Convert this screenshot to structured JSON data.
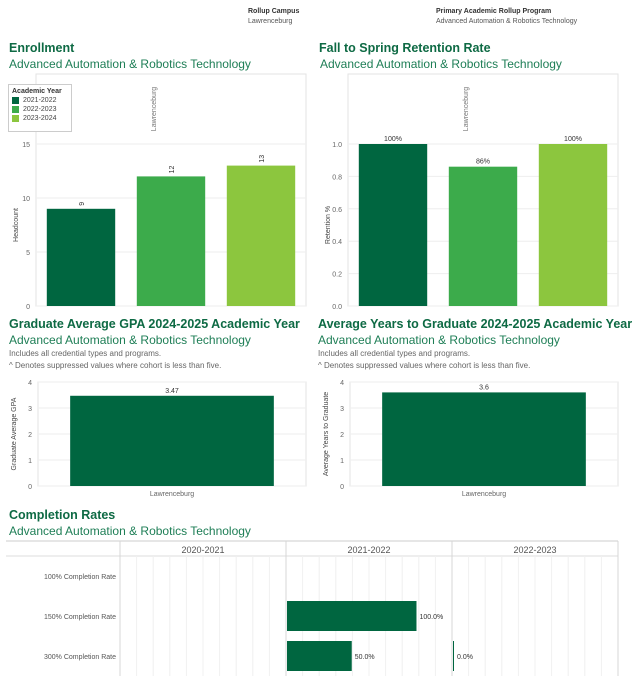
{
  "filters": {
    "campus": {
      "label": "Rollup Campus",
      "value": "Lawrenceburg"
    },
    "program": {
      "label": "Primary Academic Rollup Program",
      "value": "Advanced Automation & Robotics Technology"
    }
  },
  "colors": {
    "dark_green": "#006640",
    "mid_green": "#3cab4b",
    "light_green": "#8cc63e",
    "title_green": "#0e6a44"
  },
  "enrollment": {
    "title": "Enrollment",
    "subtitle": "Advanced Automation & Robotics Technology",
    "legend_title": "Academic Year",
    "column_header": "Lawrenceburg"
  },
  "retention": {
    "title": "Fall to Spring Retention Rate",
    "subtitle": "Advanced Automation & Robotics Technology",
    "column_header": "Lawrenceburg"
  },
  "gpa": {
    "title": "Graduate Average GPA 2024-2025 Academic Year",
    "subtitle": "Advanced Automation & Robotics Technology",
    "note1": "Includes all credential types and programs.",
    "note2": "^ Denotes suppressed values where cohort is less than five."
  },
  "years": {
    "title": "Average Years to Graduate 2024-2025 Academic Year",
    "subtitle": "Advanced Automation & Robotics Technology",
    "note1": "Includes all credential types and programs.",
    "note2": "^ Denotes suppressed values where cohort is less than five."
  },
  "completion": {
    "title": "Completion Rates",
    "subtitle": "Advanced Automation & Robotics Technology"
  },
  "chart_data": [
    {
      "id": "enrollment",
      "type": "bar",
      "categories": [
        "2021-2022",
        "2022-2023",
        "2023-2024"
      ],
      "values": [
        9,
        12,
        13
      ],
      "labels": [
        "9",
        "12",
        "13"
      ],
      "colors": [
        "#006640",
        "#3cab4b",
        "#8cc63e"
      ],
      "ylabel": "Headcount",
      "ylim": [
        0,
        15
      ],
      "yticks": [
        0,
        5,
        10,
        15
      ],
      "legend": "top-left",
      "grid": true
    },
    {
      "id": "retention",
      "type": "bar",
      "categories": [
        "2021-2022",
        "2022-2023",
        "2023-2024"
      ],
      "values": [
        1.0,
        0.86,
        1.0
      ],
      "labels": [
        "100%",
        "86%",
        "100%"
      ],
      "colors": [
        "#006640",
        "#3cab4b",
        "#8cc63e"
      ],
      "ylabel": "Retention %",
      "ylim": [
        0,
        1.0
      ],
      "yticks": [
        "0.0",
        "0.2",
        "0.4",
        "0.6",
        "0.8",
        "1.0"
      ],
      "grid": true
    },
    {
      "id": "gpa",
      "type": "bar",
      "categories": [
        "Lawrenceburg"
      ],
      "values": [
        3.47
      ],
      "labels": [
        "3.47"
      ],
      "colors": [
        "#006640"
      ],
      "ylabel": "Graduate Average GPA",
      "ylim": [
        0,
        4
      ],
      "yticks": [
        0,
        1,
        2,
        3,
        4
      ],
      "grid": true
    },
    {
      "id": "years",
      "type": "bar",
      "categories": [
        "Lawrenceburg"
      ],
      "values": [
        3.6
      ],
      "labels": [
        "3.6"
      ],
      "colors": [
        "#006640"
      ],
      "ylabel": "Average Years to Graduate",
      "ylim": [
        0,
        4
      ],
      "yticks": [
        0,
        1,
        2,
        3,
        4
      ],
      "grid": true
    },
    {
      "id": "completion",
      "type": "bar",
      "orientation": "horizontal",
      "panels": [
        "2020-2021",
        "2021-2022",
        "2022-2023"
      ],
      "rows": [
        "100% Completion Rate",
        "150% Completion Rate",
        "300% Completion Rate"
      ],
      "values": [
        [
          null,
          null,
          null
        ],
        [
          null,
          1.0,
          null
        ],
        [
          null,
          0.5,
          0.0
        ]
      ],
      "labels": [
        [
          "",
          "",
          ""
        ],
        [
          "",
          "100.0%",
          ""
        ],
        [
          "",
          "50.0%",
          "0.0%"
        ]
      ],
      "colors": [
        "#006640"
      ],
      "xlim": [
        0,
        1.0
      ],
      "grid": true
    }
  ]
}
